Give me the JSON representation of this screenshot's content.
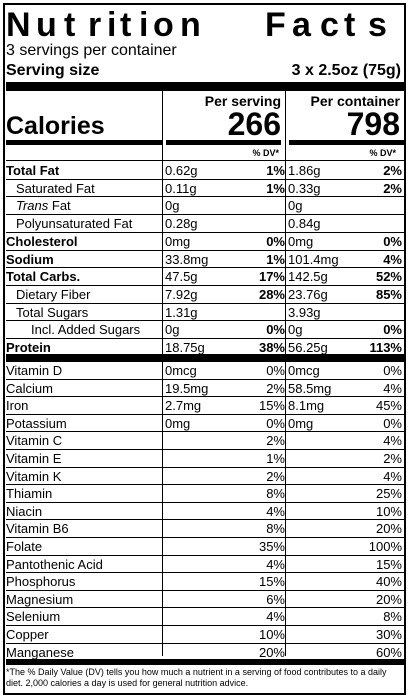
{
  "title": {
    "letters": [
      "N",
      "u",
      "t",
      "r",
      "i",
      "t",
      "i",
      "o",
      "n",
      "F",
      "a",
      "c",
      "t",
      "s"
    ]
  },
  "servings_per_container": "3 servings per container",
  "serving_size": {
    "label": "Serving size",
    "value": "3 x 2.5oz (75g)"
  },
  "headers": {
    "per_serving": "Per serving",
    "per_container": "Per container",
    "dv": "% DV*"
  },
  "calories": {
    "label": "Calories",
    "per_serving": "266",
    "per_container": "798"
  },
  "rows_top": [
    {
      "name": "Total Fat",
      "bold": true,
      "indent": 0,
      "v1": "0.62g",
      "d1": "1%",
      "v2": "1.86g",
      "d2": "2%"
    },
    {
      "name": "Saturated Fat",
      "bold": false,
      "indent": 1,
      "v1": "0.11g",
      "d1": "1%",
      "v2": "0.33g",
      "d2": "2%"
    },
    {
      "name": "Trans",
      "name_suffix": " Fat",
      "italic": true,
      "bold": false,
      "indent": 1,
      "v1": "0g",
      "d1": "",
      "v2": "0g",
      "d2": ""
    },
    {
      "name": "Polyunsaturated Fat",
      "bold": false,
      "indent": 1,
      "v1": "0.28g",
      "d1": "",
      "v2": "0.84g",
      "d2": ""
    },
    {
      "name": "Cholesterol",
      "bold": true,
      "indent": 0,
      "v1": "0mg",
      "d1": "0%",
      "v2": "0mg",
      "d2": "0%"
    },
    {
      "name": "Sodium",
      "bold": true,
      "indent": 0,
      "v1": "33.8mg",
      "d1": "1%",
      "v2": "101.4mg",
      "d2": "4%"
    },
    {
      "name": "Total Carbs.",
      "bold": true,
      "indent": 0,
      "v1": "47.5g",
      "d1": "17%",
      "v2": "142.5g",
      "d2": "52%"
    },
    {
      "name": "Dietary Fiber",
      "bold": false,
      "indent": 1,
      "v1": "7.92g",
      "d1": "28%",
      "v2": "23.76g",
      "d2": "85%"
    },
    {
      "name": "Total Sugars",
      "bold": false,
      "indent": 1,
      "v1": "1.31g",
      "d1": "",
      "v2": "3.93g",
      "d2": ""
    },
    {
      "name": "Incl. Added Sugars",
      "bold": false,
      "indent": 2,
      "v1": "0g",
      "d1": "0%",
      "v2": "0g",
      "d2": "0%"
    },
    {
      "name": "Protein",
      "bold": true,
      "indent": 0,
      "v1": "18.75g",
      "d1": "38%",
      "v2": "56.25g",
      "d2": "113%"
    }
  ],
  "rows_vitamins": [
    {
      "name": "Vitamin D",
      "v1": "0mcg",
      "d1": "0%",
      "v2": "0mcg",
      "d2": "0%"
    },
    {
      "name": "Calcium",
      "v1": "19.5mg",
      "d1": "2%",
      "v2": "58.5mg",
      "d2": "4%"
    },
    {
      "name": "Iron",
      "v1": "2.7mg",
      "d1": "15%",
      "v2": "8.1mg",
      "d2": "45%"
    },
    {
      "name": "Potassium",
      "v1": "0mg",
      "d1": "0%",
      "v2": "0mg",
      "d2": "0%"
    },
    {
      "name": "Vitamin C",
      "v1": "",
      "d1": "2%",
      "v2": "",
      "d2": "4%"
    },
    {
      "name": "Vitamin E",
      "v1": "",
      "d1": "1%",
      "v2": "",
      "d2": "2%"
    },
    {
      "name": "Vitamin K",
      "v1": "",
      "d1": "2%",
      "v2": "",
      "d2": "4%"
    },
    {
      "name": "Thiamin",
      "v1": "",
      "d1": "8%",
      "v2": "",
      "d2": "25%"
    },
    {
      "name": "Niacin",
      "v1": "",
      "d1": "4%",
      "v2": "",
      "d2": "10%"
    },
    {
      "name": "Vitamin B6",
      "v1": "",
      "d1": "8%",
      "v2": "",
      "d2": "20%"
    },
    {
      "name": "Folate",
      "v1": "",
      "d1": "35%",
      "v2": "",
      "d2": "100%"
    },
    {
      "name": "Pantothenic Acid",
      "v1": "",
      "d1": "4%",
      "v2": "",
      "d2": "15%"
    },
    {
      "name": "Phosphorus",
      "v1": "",
      "d1": "15%",
      "v2": "",
      "d2": "40%"
    },
    {
      "name": "Magnesium",
      "v1": "",
      "d1": "6%",
      "v2": "",
      "d2": "20%"
    },
    {
      "name": "Selenium",
      "v1": "",
      "d1": "4%",
      "v2": "",
      "d2": "8%"
    },
    {
      "name": "Copper",
      "v1": "",
      "d1": "10%",
      "v2": "",
      "d2": "30%"
    },
    {
      "name": "Manganese",
      "v1": "",
      "d1": "20%",
      "v2": "",
      "d2": "60%"
    }
  ],
  "footnote": "*The % Daily Value (DV) tells you how much a nutrient in a serving of food contributes to a daily diet. 2,000 calories a day is used for general nutrition advice."
}
